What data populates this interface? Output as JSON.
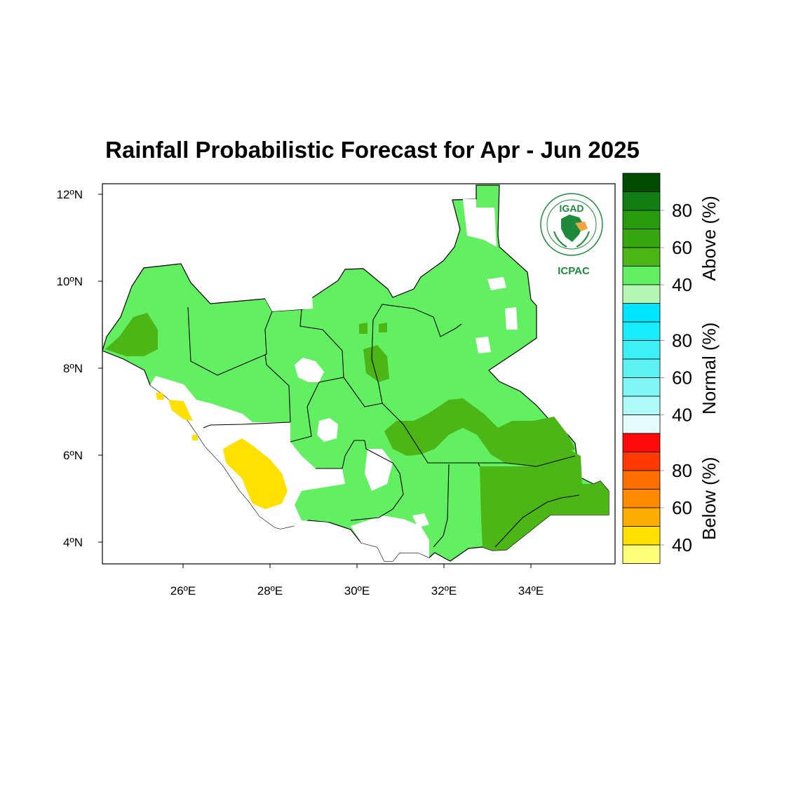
{
  "title": "Rainfall Probabilistic Forecast for Apr - Jun 2025",
  "axes": {
    "lat_ticks": [
      "12ºN",
      "10ºN",
      "8ºN",
      "6ºN",
      "4ºN"
    ],
    "lon_ticks": [
      "26ºE",
      "28ºE",
      "30ºE",
      "32ºE",
      "34ºE"
    ],
    "lat_values": [
      12,
      10,
      8,
      6,
      4
    ],
    "lon_values": [
      26,
      28,
      30,
      32,
      34
    ]
  },
  "logo": {
    "name": "IGAD",
    "subtitle": "ICPAC",
    "ring_text": "INTERGOVERNMENTAL AUTHORITY ON DEVELOPMENT"
  },
  "colorbar": {
    "sections": [
      {
        "label": "Above (%)",
        "ticks": [
          "80",
          "60",
          "40"
        ],
        "colors": [
          "#004d00",
          "#137e13",
          "#279a0e",
          "#37a70f",
          "#4cb616",
          "#62f062",
          "#b4f7b4"
        ]
      },
      {
        "label": "Normal (%)",
        "ticks": [
          "80",
          "60",
          "40"
        ],
        "colors": [
          "#00e5ff",
          "#16ecfb",
          "#3df0f6",
          "#5ef3f3",
          "#80f6f6",
          "#aefaf8",
          "#e3fbfa"
        ]
      },
      {
        "label": "Below (%)",
        "ticks": [
          "80",
          "60",
          "40"
        ],
        "colors": [
          "#ff0a0a",
          "#ff3a00",
          "#ff6e00",
          "#ff8a00",
          "#ffad00",
          "#ffe000",
          "#ffff7a"
        ]
      }
    ]
  },
  "legend_colors": {
    "above_40": "#62f062",
    "above_50": "#4cb616",
    "below_40": "#ffe000",
    "no_signal": "#ffffff",
    "boundary": "#000000"
  }
}
